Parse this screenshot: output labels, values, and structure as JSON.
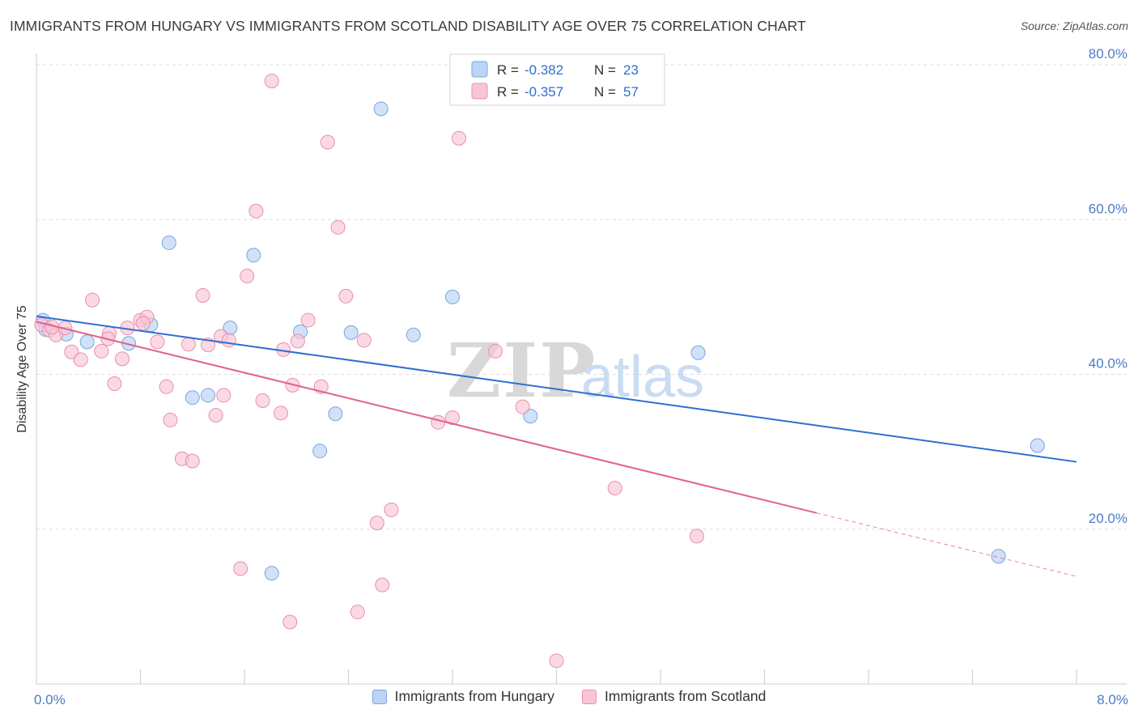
{
  "title": "IMMIGRANTS FROM HUNGARY VS IMMIGRANTS FROM SCOTLAND DISABILITY AGE OVER 75 CORRELATION CHART",
  "source": "Source: ZipAtlas.com",
  "watermark": {
    "zip": "ZIP",
    "atlas": "atlas"
  },
  "colors": {
    "hungary_fill": "#bcd4f5",
    "hungary_stroke": "#7aa6e0",
    "hungary_line": "#2f6fd0",
    "scotland_fill": "#f9c5d6",
    "scotland_stroke": "#e88fae",
    "scotland_line": "#e0648f",
    "tick_label": "#4a7cc7",
    "grid": "#dddddd"
  },
  "legend": {
    "r_label": "R =",
    "n_label": "N =",
    "hungary": {
      "r": "-0.382",
      "n": "23"
    },
    "scotland": {
      "r": "-0.357",
      "n": "57"
    }
  },
  "chart_data": {
    "type": "scatter",
    "title": "IMMIGRANTS FROM HUNGARY VS IMMIGRANTS FROM SCOTLAND DISABILITY AGE OVER 75 CORRELATION CHART",
    "xlabel": "",
    "ylabel": "Disability Age Over 75",
    "xlim": [
      0,
      8
    ],
    "ylim": [
      0,
      80
    ],
    "x_tick_labels": [
      "0.0%",
      "8.0%"
    ],
    "y_ticks": [
      20,
      40,
      60,
      80
    ],
    "y_tick_labels": [
      "20.0%",
      "40.0%",
      "60.0%",
      "80.0%"
    ],
    "grid": true,
    "legend_position": "top-center",
    "series": [
      {
        "name": "Immigrants from Hungary",
        "points": [
          [
            0.05,
            47.0
          ],
          [
            0.07,
            45.8
          ],
          [
            0.23,
            45.2
          ],
          [
            0.39,
            44.2
          ],
          [
            0.71,
            44.0
          ],
          [
            0.88,
            46.4
          ],
          [
            1.02,
            57.0
          ],
          [
            1.2,
            37.0
          ],
          [
            1.32,
            37.3
          ],
          [
            1.49,
            46.0
          ],
          [
            1.67,
            55.4
          ],
          [
            1.81,
            14.3
          ],
          [
            2.03,
            45.5
          ],
          [
            2.18,
            30.1
          ],
          [
            2.3,
            34.9
          ],
          [
            2.42,
            45.4
          ],
          [
            2.65,
            74.3
          ],
          [
            2.9,
            45.1
          ],
          [
            3.2,
            50.0
          ],
          [
            3.8,
            34.6
          ],
          [
            5.09,
            42.8
          ],
          [
            7.7,
            30.8
          ],
          [
            7.4,
            16.5
          ]
        ],
        "trend": {
          "x": [
            0,
            8
          ],
          "y": [
            47.5,
            28.7
          ]
        }
      },
      {
        "name": "Immigrants from Scotland",
        "points": [
          [
            0.04,
            46.4
          ],
          [
            0.1,
            45.7
          ],
          [
            0.15,
            45.1
          ],
          [
            0.22,
            46.0
          ],
          [
            0.27,
            42.9
          ],
          [
            0.34,
            41.9
          ],
          [
            0.43,
            49.6
          ],
          [
            0.5,
            43.0
          ],
          [
            0.56,
            45.3
          ],
          [
            0.6,
            38.8
          ],
          [
            0.66,
            42.0
          ],
          [
            0.7,
            46.0
          ],
          [
            0.8,
            47.0
          ],
          [
            0.85,
            47.4
          ],
          [
            0.93,
            44.2
          ],
          [
            1.0,
            38.4
          ],
          [
            1.03,
            34.1
          ],
          [
            1.12,
            29.1
          ],
          [
            1.17,
            43.9
          ],
          [
            1.2,
            28.8
          ],
          [
            1.28,
            50.2
          ],
          [
            1.32,
            43.8
          ],
          [
            1.38,
            34.7
          ],
          [
            1.42,
            44.9
          ],
          [
            1.44,
            37.3
          ],
          [
            1.57,
            14.9
          ],
          [
            1.62,
            52.7
          ],
          [
            1.69,
            61.1
          ],
          [
            1.74,
            36.6
          ],
          [
            1.81,
            77.9
          ],
          [
            1.88,
            35.0
          ],
          [
            1.9,
            43.2
          ],
          [
            1.97,
            38.6
          ],
          [
            2.01,
            44.3
          ],
          [
            2.09,
            47.0
          ],
          [
            2.19,
            38.4
          ],
          [
            2.24,
            70.0
          ],
          [
            2.32,
            59.0
          ],
          [
            2.38,
            50.1
          ],
          [
            2.47,
            9.3
          ],
          [
            2.52,
            44.4
          ],
          [
            2.62,
            20.8
          ],
          [
            2.66,
            12.8
          ],
          [
            2.73,
            22.5
          ],
          [
            3.09,
            33.8
          ],
          [
            3.2,
            34.4
          ],
          [
            3.25,
            70.5
          ],
          [
            3.53,
            43.0
          ],
          [
            3.74,
            35.8
          ],
          [
            4.0,
            3.0
          ],
          [
            4.45,
            25.3
          ],
          [
            5.08,
            19.1
          ],
          [
            1.95,
            8.0
          ],
          [
            0.12,
            46.1
          ],
          [
            0.55,
            44.6
          ],
          [
            0.82,
            46.6
          ],
          [
            1.48,
            44.4
          ]
        ],
        "trend": {
          "x": [
            0,
            6.0
          ],
          "y": [
            46.8,
            22.1
          ]
        },
        "trend_dashed": {
          "x": [
            6.0,
            8.0
          ],
          "y": [
            22.1,
            13.9
          ]
        }
      }
    ]
  },
  "bottom_legend": [
    "Immigrants from Hungary",
    "Immigrants from Scotland"
  ]
}
